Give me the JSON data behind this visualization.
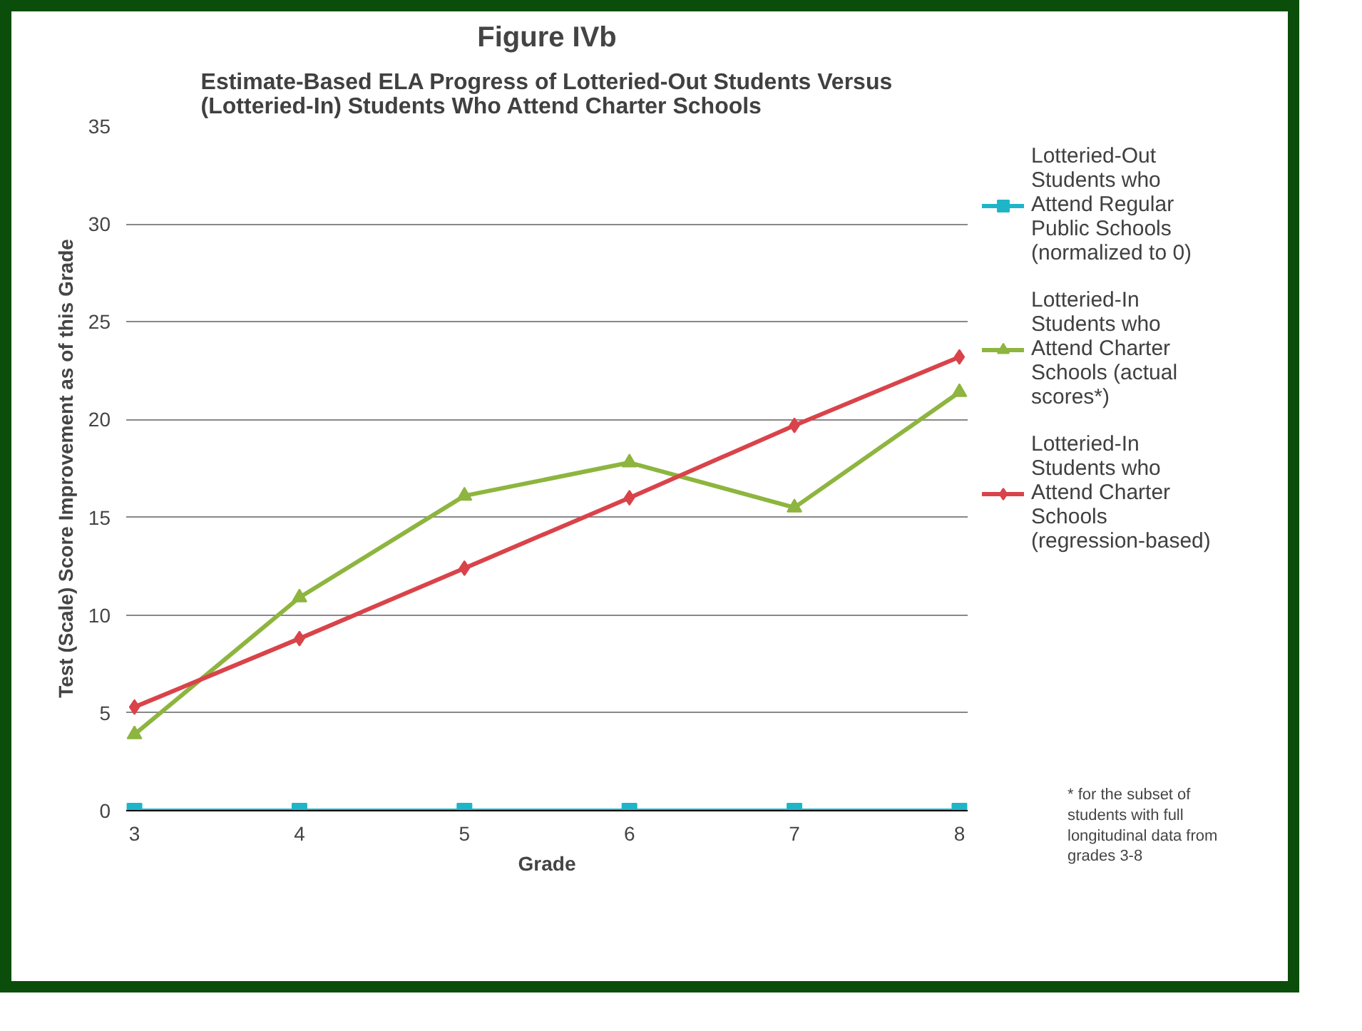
{
  "chart_data": {
    "type": "line",
    "title": "Figure IVb",
    "subtitle": "Estimate-Based ELA Progress of Lotteried-Out Students Versus (Lotteried-In) Students Who Attend Charter Schools",
    "xlabel": "Grade",
    "ylabel": "Test (Scale) Score Improvement as of this Grade",
    "categories": [
      "3",
      "4",
      "5",
      "6",
      "7",
      "8"
    ],
    "series": [
      {
        "name": "Lotteried-Out Students who Attend Regular Public Schools (normalized to 0)",
        "color": "#1fb5c9",
        "marker": "square",
        "values": [
          0,
          0,
          0,
          0,
          0,
          0
        ]
      },
      {
        "name": "Lotteried-In Students who Attend Charter Schools (actual scores*)",
        "color": "#8db53f",
        "marker": "triangle",
        "values": [
          3.9,
          10.9,
          16.1,
          17.8,
          15.5,
          21.4
        ]
      },
      {
        "name": "Lotteried-In Students who Attend Charter Schools (regression-based)",
        "color": "#d9434a",
        "marker": "diamond",
        "values": [
          5.3,
          8.8,
          12.4,
          16.0,
          19.7,
          23.2
        ]
      }
    ],
    "ylim": [
      0,
      35
    ],
    "yticks": [
      0,
      5,
      10,
      15,
      20,
      25,
      30,
      35
    ],
    "grid": "y",
    "legend": "right",
    "annotations": [
      "* for the subset of students with full longitudinal data from grades 3-8"
    ]
  }
}
